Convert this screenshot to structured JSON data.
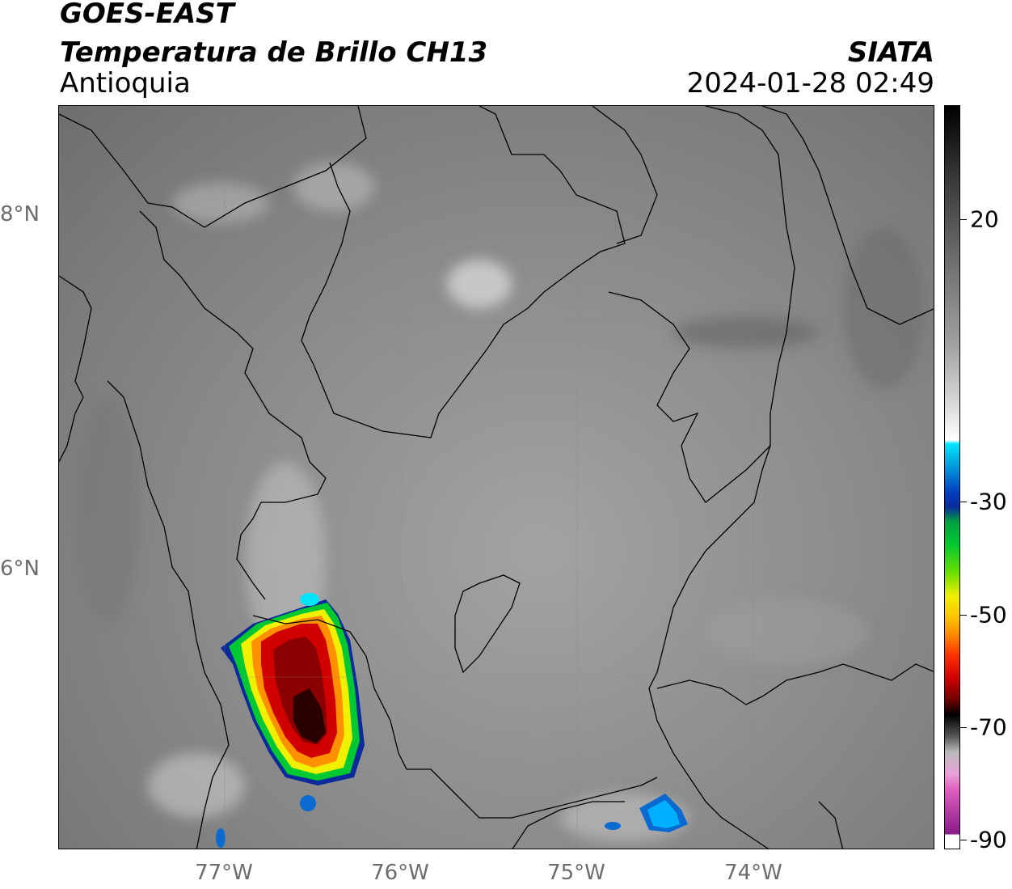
{
  "header": {
    "satellite": "GOES-EAST",
    "product": "Temperatura de Brillo CH13",
    "region": "Antioquia",
    "organization": "SIATA",
    "datetime": "2024-01-28 02:49"
  },
  "map": {
    "lat_labels": [
      "8°N",
      "6°N"
    ],
    "lon_labels": [
      "77°W",
      "76°W",
      "75°W",
      "74°W"
    ]
  },
  "colorbar": {
    "tick_labels": [
      "20",
      "-30",
      "-50",
      "-70",
      "-90"
    ],
    "colors": {
      "warm": "#222222",
      "neutral": "#ffffff",
      "cyan": "#00e5ff",
      "blue": "#0a2a9a",
      "green": "#00c832",
      "yellow": "#f0f000",
      "orange": "#ff9000",
      "red": "#d00000",
      "darkred": "#4a0000",
      "black": "#000000",
      "pink": "#e060c0",
      "purple": "#8a1a8a"
    }
  }
}
